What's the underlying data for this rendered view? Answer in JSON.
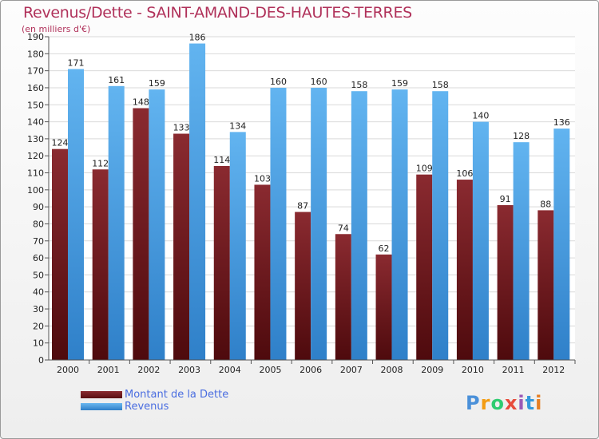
{
  "title": "Revenus/Dette - SAINT-AMAND-DES-HAUTES-TERRES",
  "subtitle": "(en milliers d'€)",
  "legend": [
    {
      "name": "Montant de la Dette",
      "color": "#6b1e24"
    },
    {
      "name": "Revenus",
      "color": "#4fa3e6"
    }
  ],
  "logo": {
    "text": "Proxiti",
    "colors": [
      "#4a90d9",
      "#f39c12",
      "#2ecc71",
      "#e74c3c",
      "#9b59b6",
      "#3498db",
      "#e67e22"
    ]
  },
  "chart_data": {
    "type": "bar",
    "categories": [
      "2000",
      "2001",
      "2002",
      "2003",
      "2004",
      "2005",
      "2006",
      "2007",
      "2008",
      "2009",
      "2010",
      "2011",
      "2012"
    ],
    "series": [
      {
        "name": "Montant de la Dette",
        "color": "#6b1e24",
        "values": [
          124,
          112,
          148,
          133,
          114,
          103,
          87,
          74,
          62,
          109,
          106,
          91,
          88
        ]
      },
      {
        "name": "Revenus",
        "color": "#4fa3e6",
        "values": [
          171,
          161,
          159,
          186,
          134,
          160,
          160,
          158,
          159,
          158,
          140,
          128,
          136
        ]
      }
    ],
    "ylim": [
      0,
      190
    ],
    "yticks": [
      0,
      10,
      20,
      30,
      40,
      50,
      60,
      70,
      80,
      90,
      100,
      110,
      120,
      130,
      140,
      150,
      160,
      170,
      180,
      190
    ],
    "grid": true,
    "legend_position": "bottom-left"
  }
}
